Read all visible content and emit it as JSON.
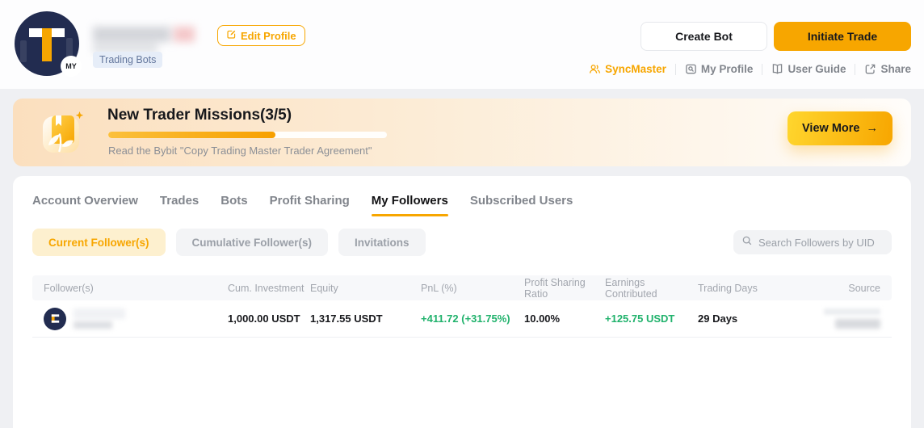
{
  "header": {
    "avatar_letter": "T",
    "avatar_badge": "MY",
    "trading_bots_badge": "Trading Bots",
    "edit_profile_label": "Edit Profile",
    "create_bot_label": "Create Bot",
    "initiate_trade_label": "Initiate Trade",
    "links": [
      {
        "label": "SyncMaster"
      },
      {
        "label": "My Profile"
      },
      {
        "label": "User Guide"
      },
      {
        "label": "Share"
      }
    ]
  },
  "banner": {
    "title": "New Trader Missions(3/5)",
    "progress_percent": 60,
    "subtitle": "Read the Bybit \"Copy Trading Master Trader Agreement\"",
    "view_more_label": "View More",
    "view_more_arrow": "→"
  },
  "tabs": [
    "Account Overview",
    "Trades",
    "Bots",
    "Profit Sharing",
    "My Followers",
    "Subscribed Users"
  ],
  "active_tab": "My Followers",
  "followers": {
    "filters": [
      "Current Follower(s)",
      "Cumulative Follower(s)",
      "Invitations"
    ],
    "active_filter": "Current Follower(s)",
    "search_placeholder": "Search Followers by UID",
    "table": {
      "columns": [
        "Follower(s)",
        "Cum. Investment",
        "Equity",
        "PnL (%)",
        "Profit Sharing Ratio",
        "Earnings Contributed",
        "Trading Days",
        "Source"
      ],
      "row": {
        "cum_investment": "1,000.00 USDT",
        "equity": "1,317.55 USDT",
        "pnl": "+411.72 (+31.75%)",
        "profit_sharing_ratio": "10.00%",
        "earnings_contributed": "+125.75 USDT",
        "trading_days": "29 Days"
      }
    }
  },
  "colors": {
    "accent": "#F7A600",
    "positive": "#20B26C",
    "avatar_bg": "#222C50"
  }
}
